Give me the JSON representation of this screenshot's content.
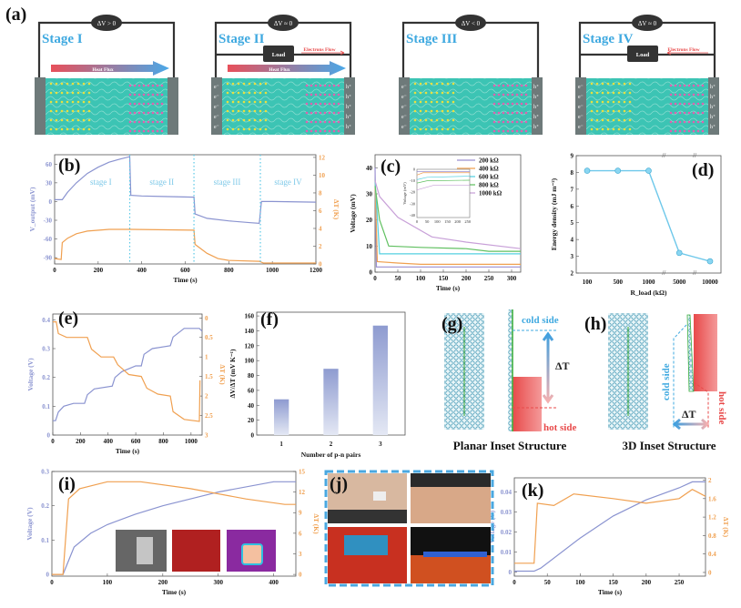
{
  "figure": {
    "panel_labels": [
      "(a)",
      "(b)",
      "(c)",
      "(d)",
      "(e)",
      "(f)",
      "(g)",
      "(h)",
      "(i)",
      "(j)",
      "(k)"
    ],
    "stages": [
      {
        "label": "Stage I",
        "meter": "ΔV > 0",
        "load": "",
        "electrons_flow": "",
        "heat_flux": "Heat Flux",
        "charges": false
      },
      {
        "label": "Stage II",
        "meter": "ΔV ≈ 0",
        "load": "Load",
        "electrons_flow": "Electrons Flow",
        "heat_flux": "Heat Flux",
        "charges": true
      },
      {
        "label": "Stage III",
        "meter": "ΔV < 0",
        "load": "",
        "electrons_flow": "",
        "heat_flux": "",
        "charges": true
      },
      {
        "label": "Stage IV",
        "meter": "ΔV ≈ 0",
        "load": "Load",
        "electrons_flow": "Electrons Flow",
        "heat_flux": "",
        "charges": true
      }
    ],
    "charge_labels": {
      "electron": "e⁻",
      "hole": "h⁺"
    },
    "g": {
      "title": "Planar Inset Structure",
      "cold": "cold side",
      "hot": "hot side",
      "delta": "ΔT"
    },
    "h": {
      "title": "3D Inset Structure",
      "cold": "cold side",
      "hot": "hot side",
      "delta": "ΔT"
    },
    "colors": {
      "voltage": "#8a93d0",
      "temperature": "#f0a050",
      "stage_text": "#5ab4e0",
      "divider": "#5ac8e6",
      "accent_blue": "#3fa9e0",
      "hot": "#e84a4a"
    }
  },
  "chart_data": [
    {
      "id": "b",
      "type": "line",
      "xlabel": "Time (s)",
      "ylabel": "V_output (mV)",
      "y2label": "ΔT (K)",
      "xlim": [
        0,
        1200
      ],
      "ylim": [
        -100,
        75
      ],
      "y2lim": [
        0,
        12.3
      ],
      "xticks": [
        0,
        200,
        400,
        600,
        800,
        1000,
        1200
      ],
      "yticks": [
        -90,
        -60,
        -30,
        0,
        30,
        60
      ],
      "y2ticks": [
        0,
        2,
        4,
        6,
        8,
        10,
        12
      ],
      "stage_labels": [
        "stage I",
        "stage II",
        "stage III",
        "stage IV"
      ],
      "stage_boundaries": [
        345,
        640,
        945
      ],
      "series": [
        {
          "axis": "y",
          "color": "#8a93d0",
          "points": [
            [
              0,
              3
            ],
            [
              35,
              3
            ],
            [
              60,
              15
            ],
            [
              100,
              30
            ],
            [
              150,
              45
            ],
            [
              200,
              55
            ],
            [
              250,
              63
            ],
            [
              300,
              68
            ],
            [
              345,
              72
            ],
            [
              350,
              10
            ],
            [
              400,
              9
            ],
            [
              500,
              8
            ],
            [
              640,
              7
            ],
            [
              645,
              -20
            ],
            [
              700,
              -27
            ],
            [
              800,
              -31
            ],
            [
              900,
              -34
            ],
            [
              940,
              -35
            ],
            [
              950,
              0
            ],
            [
              1000,
              0
            ],
            [
              1200,
              -1
            ]
          ]
        },
        {
          "axis": "y2",
          "color": "#f0a050",
          "points": [
            [
              0,
              0.6
            ],
            [
              30,
              0.5
            ],
            [
              35,
              2.4
            ],
            [
              60,
              2.9
            ],
            [
              100,
              3.4
            ],
            [
              150,
              3.7
            ],
            [
              250,
              3.9
            ],
            [
              350,
              3.9
            ],
            [
              640,
              3.8
            ],
            [
              645,
              2.2
            ],
            [
              700,
              1.2
            ],
            [
              750,
              0.6
            ],
            [
              800,
              0.4
            ],
            [
              940,
              0.3
            ],
            [
              960,
              0.1
            ],
            [
              1200,
              0.1
            ]
          ]
        }
      ]
    },
    {
      "id": "c",
      "type": "line",
      "xlabel": "Time (s)",
      "ylabel": "Voltage (mV)",
      "xlim": [
        0,
        320
      ],
      "ylim": [
        0,
        45
      ],
      "xticks": [
        0,
        50,
        100,
        150,
        200,
        250,
        300
      ],
      "yticks": [
        0,
        10,
        20,
        30,
        40
      ],
      "legend": "top-right",
      "series": [
        {
          "name": "200 kΩ",
          "color": "#9a8fd0",
          "points": [
            [
              0,
              40
            ],
            [
              3,
              2
            ],
            [
              320,
              2
            ]
          ]
        },
        {
          "name": "400 kΩ",
          "color": "#f0a050",
          "points": [
            [
              0,
              35
            ],
            [
              5,
              4
            ],
            [
              50,
              3.5
            ],
            [
              100,
              3
            ],
            [
              320,
              3
            ]
          ]
        },
        {
          "name": "600 kΩ",
          "color": "#55d0e0",
          "points": [
            [
              0,
              35
            ],
            [
              10,
              7
            ],
            [
              320,
              7
            ]
          ]
        },
        {
          "name": "800 kΩ",
          "color": "#60c060",
          "points": [
            [
              0,
              33
            ],
            [
              10,
              20
            ],
            [
              30,
              10
            ],
            [
              100,
              9.5
            ],
            [
              200,
              9
            ],
            [
              250,
              8
            ],
            [
              320,
              8
            ]
          ]
        },
        {
          "name": "1000 kΩ",
          "color": "#c8a0d8",
          "points": [
            [
              0,
              35
            ],
            [
              10,
              29
            ],
            [
              50,
              21
            ],
            [
              125,
              13.5
            ],
            [
              200,
              11.5
            ],
            [
              320,
              9
            ]
          ]
        }
      ],
      "inset": {
        "ylabel": "Voltage (mV)",
        "xlim": [
          0,
          260
        ],
        "ylim": [
          -42,
          0
        ],
        "xticks": [
          0,
          50,
          100,
          150,
          200,
          250
        ],
        "yticks": [
          -40,
          -30,
          -20,
          -10,
          0
        ],
        "series": [
          {
            "color": "#9a8fd0",
            "points": [
              [
                0,
                -2
              ],
              [
                260,
                -2
              ]
            ]
          },
          {
            "color": "#f0a050",
            "points": [
              [
                0,
                -5
              ],
              [
                30,
                -3
              ],
              [
                260,
                -3
              ]
            ]
          },
          {
            "color": "#55d0e0",
            "points": [
              [
                0,
                -9
              ],
              [
                50,
                -7
              ],
              [
                260,
                -6
              ]
            ]
          },
          {
            "color": "#60c060",
            "points": [
              [
                0,
                -12
              ],
              [
                50,
                -10
              ],
              [
                260,
                -9.5
              ]
            ]
          },
          {
            "color": "#c8a0d8",
            "points": [
              [
                0,
                -18
              ],
              [
                40,
                -16
              ],
              [
                80,
                -14
              ],
              [
                260,
                -14
              ]
            ]
          }
        ]
      }
    },
    {
      "id": "d",
      "type": "line",
      "xlabel": "R_load (kΩ)",
      "ylabel": "Energy density (mJ m⁻²)",
      "categories": [
        "100",
        "500",
        "1000",
        "5000",
        "10000"
      ],
      "values": [
        8.1,
        8.1,
        8.1,
        3.2,
        2.7
      ],
      "ylim": [
        2,
        9
      ],
      "yticks": [
        2,
        3,
        4,
        5,
        6,
        7,
        8,
        9
      ],
      "axis_breaks": true,
      "color": "#6ec8ea"
    },
    {
      "id": "e",
      "type": "line",
      "xlabel": "Time (s)",
      "ylabel": "Voltage (V)",
      "y2label": "ΔT (K)",
      "xlim": [
        0,
        1080
      ],
      "ylim": [
        0,
        0.42
      ],
      "y2lim": [
        3.0,
        -0.1
      ],
      "xticks": [
        0,
        200,
        400,
        600,
        800,
        1000
      ],
      "yticks": [
        0.0,
        0.1,
        0.2,
        0.3,
        0.4
      ],
      "y2ticks": [
        0.0,
        0.5,
        1.0,
        1.5,
        2.0,
        2.5,
        3.0
      ],
      "series": [
        {
          "axis": "y",
          "color": "#8a93d0",
          "points": [
            [
              0,
              0.05
            ],
            [
              20,
              0.05
            ],
            [
              40,
              0.08
            ],
            [
              80,
              0.1
            ],
            [
              150,
              0.11
            ],
            [
              230,
              0.11
            ],
            [
              250,
              0.14
            ],
            [
              300,
              0.16
            ],
            [
              430,
              0.17
            ],
            [
              450,
              0.2
            ],
            [
              500,
              0.22
            ],
            [
              600,
              0.24
            ],
            [
              640,
              0.24
            ],
            [
              660,
              0.28
            ],
            [
              720,
              0.3
            ],
            [
              850,
              0.31
            ],
            [
              870,
              0.34
            ],
            [
              950,
              0.37
            ],
            [
              1060,
              0.37
            ],
            [
              1080,
              0.36
            ]
          ]
        },
        {
          "axis": "y2",
          "color": "#f0a050",
          "points": [
            [
              0,
              0.1
            ],
            [
              25,
              0.1
            ],
            [
              40,
              0.4
            ],
            [
              100,
              0.5
            ],
            [
              250,
              0.5
            ],
            [
              280,
              0.8
            ],
            [
              350,
              1.0
            ],
            [
              440,
              1.0
            ],
            [
              470,
              1.2
            ],
            [
              550,
              1.45
            ],
            [
              640,
              1.5
            ],
            [
              680,
              1.8
            ],
            [
              760,
              1.95
            ],
            [
              850,
              2.0
            ],
            [
              870,
              2.4
            ],
            [
              950,
              2.6
            ],
            [
              1060,
              2.65
            ],
            [
              1065,
              1.6
            ]
          ]
        }
      ]
    },
    {
      "id": "f",
      "type": "bar",
      "xlabel": "Number of p-n pairs",
      "ylabel": "ΔV/ΔT (mV K⁻¹)",
      "categories": [
        "1",
        "2",
        "3"
      ],
      "values": [
        48,
        89,
        147
      ],
      "ylim": [
        0,
        165
      ],
      "yticks": [
        0,
        20,
        40,
        60,
        80,
        100,
        120,
        140,
        160
      ],
      "color": "#98a4d4"
    },
    {
      "id": "i",
      "type": "line",
      "xlabel": "Time (s)",
      "ylabel": "Voltage (V)",
      "y2label": "ΔT (K)",
      "xlim": [
        0,
        440
      ],
      "ylim": [
        -0.005,
        0.3
      ],
      "y2lim": [
        -0.25,
        15
      ],
      "xticks": [
        0,
        100,
        200,
        300,
        400
      ],
      "yticks": [
        0.0,
        0.1,
        0.2,
        0.3
      ],
      "y2ticks": [
        0,
        3,
        6,
        9,
        12,
        15
      ],
      "series": [
        {
          "axis": "y",
          "color": "#8a93d0",
          "points": [
            [
              0,
              0
            ],
            [
              20,
              0
            ],
            [
              40,
              0.08
            ],
            [
              70,
              0.12
            ],
            [
              100,
              0.145
            ],
            [
              150,
              0.175
            ],
            [
              200,
              0.2
            ],
            [
              300,
              0.24
            ],
            [
              400,
              0.27
            ],
            [
              440,
              0.27
            ]
          ]
        },
        {
          "axis": "y2",
          "color": "#f0a050",
          "points": [
            [
              0,
              0
            ],
            [
              20,
              0
            ],
            [
              30,
              11
            ],
            [
              50,
              12.5
            ],
            [
              100,
              13.5
            ],
            [
              160,
              13.5
            ],
            [
              250,
              12.5
            ],
            [
              350,
              11
            ],
            [
              420,
              10.2
            ],
            [
              440,
              10.2
            ]
          ]
        }
      ]
    },
    {
      "id": "k",
      "type": "line",
      "xlabel": "Time (s)",
      "ylabel": "Voltage (V)",
      "y2label": "ΔT (K)",
      "xlim": [
        0,
        290
      ],
      "ylim": [
        -0.002,
        0.047
      ],
      "y2lim": [
        -0.08,
        2.05
      ],
      "xticks": [
        0,
        50,
        100,
        150,
        200,
        250
      ],
      "yticks": [
        0.0,
        0.01,
        0.02,
        0.03,
        0.04
      ],
      "y2ticks": [
        0.0,
        0.4,
        0.8,
        1.2,
        1.6,
        2.0
      ],
      "series": [
        {
          "axis": "y",
          "color": "#8a93d0",
          "points": [
            [
              0,
              0.0005
            ],
            [
              30,
              0.0005
            ],
            [
              40,
              0.002
            ],
            [
              100,
              0.017
            ],
            [
              150,
              0.028
            ],
            [
              200,
              0.036
            ],
            [
              250,
              0.042
            ],
            [
              270,
              0.045
            ],
            [
              290,
              0.045
            ]
          ]
        },
        {
          "axis": "y2",
          "color": "#f0a050",
          "points": [
            [
              0,
              0.2
            ],
            [
              30,
              0.2
            ],
            [
              35,
              1.5
            ],
            [
              60,
              1.45
            ],
            [
              90,
              1.7
            ],
            [
              150,
              1.6
            ],
            [
              200,
              1.5
            ],
            [
              250,
              1.6
            ],
            [
              270,
              1.8
            ],
            [
              290,
              1.65
            ]
          ]
        }
      ]
    }
  ]
}
